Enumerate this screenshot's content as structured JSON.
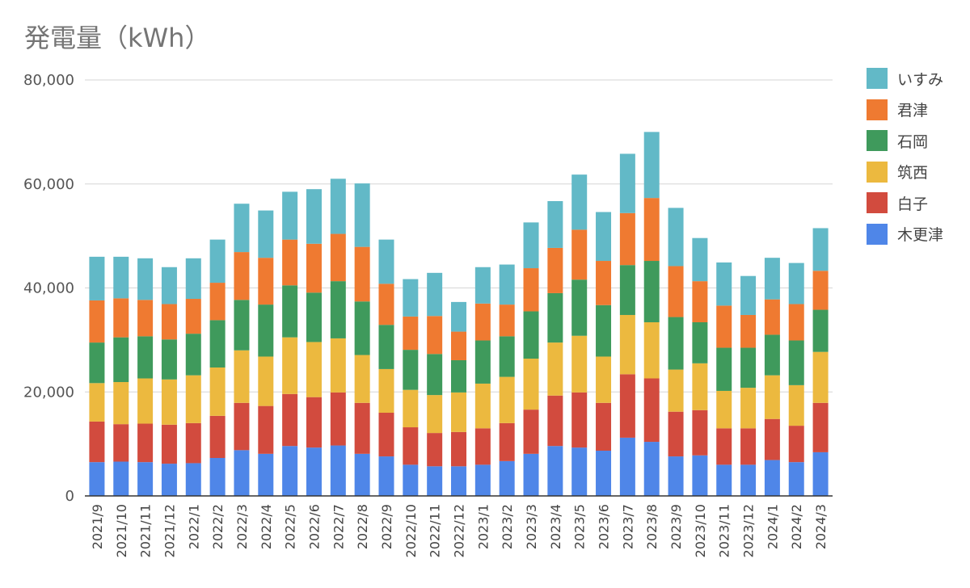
{
  "chart_data": {
    "type": "bar",
    "stacked": true,
    "title": "発電量（kWh）",
    "xlabel": "",
    "ylabel": "",
    "ylim": [
      0,
      80000
    ],
    "yticks": [
      "0",
      "20,000",
      "40,000",
      "60,000",
      "80,000"
    ],
    "grid": true,
    "legend_position": "right",
    "categories": [
      "2021/9",
      "2021/10",
      "2021/11",
      "2021/12",
      "2022/1",
      "2022/2",
      "2022/3",
      "2022/4",
      "2022/5",
      "2022/6",
      "2022/7",
      "2022/8",
      "2022/9",
      "2022/10",
      "2022/11",
      "2022/12",
      "2023/1",
      "2023/2",
      "2023/3",
      "2023/4",
      "2023/5",
      "2023/6",
      "2023/7",
      "2023/8",
      "2023/9",
      "2023/10",
      "2023/11",
      "2023/12",
      "2024/1",
      "2024/2",
      "2024/3"
    ],
    "series": [
      {
        "name": "木更津",
        "color": "#4f86e8",
        "values": [
          6500,
          6600,
          6500,
          6200,
          6300,
          7300,
          8800,
          8100,
          9600,
          9300,
          9700,
          8100,
          7600,
          6000,
          5700,
          5700,
          6000,
          6700,
          8100,
          9600,
          9300,
          8700,
          11200,
          10400,
          7600,
          7800,
          6000,
          6000,
          6900,
          6500,
          8400
        ]
      },
      {
        "name": "白子",
        "color": "#d24b3e",
        "values": [
          7800,
          7200,
          7400,
          7500,
          7700,
          8100,
          9100,
          9200,
          10000,
          9700,
          10200,
          9800,
          8400,
          7200,
          6400,
          6600,
          7000,
          7300,
          8500,
          9700,
          10600,
          9200,
          12200,
          12200,
          8600,
          8700,
          7000,
          7000,
          7900,
          7000,
          9500
        ]
      },
      {
        "name": "筑西",
        "color": "#ecb93f",
        "values": [
          7400,
          8100,
          8700,
          8700,
          9200,
          9300,
          10100,
          9500,
          10900,
          10600,
          10400,
          9200,
          8400,
          7200,
          7300,
          7600,
          8600,
          8900,
          9800,
          10200,
          10900,
          8900,
          11400,
          10800,
          8100,
          9000,
          7200,
          7800,
          8400,
          7800,
          9800
        ]
      },
      {
        "name": "石岡",
        "color": "#3f9a5c",
        "values": [
          7800,
          8600,
          8100,
          7700,
          8000,
          9100,
          9700,
          10000,
          10000,
          9500,
          11000,
          10300,
          8500,
          7700,
          7900,
          6200,
          8300,
          7800,
          9100,
          9500,
          10800,
          9900,
          9600,
          11800,
          10100,
          7900,
          8300,
          7700,
          7800,
          8600,
          8100
        ]
      },
      {
        "name": "君津",
        "color": "#ef7a31",
        "values": [
          8100,
          7500,
          7000,
          6800,
          6700,
          7200,
          9200,
          9000,
          8800,
          9400,
          9100,
          10500,
          7900,
          6400,
          7300,
          5500,
          7100,
          6100,
          8300,
          8700,
          9600,
          8500,
          10000,
          12100,
          9800,
          7900,
          8100,
          6300,
          6800,
          7000,
          7500
        ]
      },
      {
        "name": "いすみ",
        "color": "#62b9c7",
        "values": [
          8400,
          8000,
          8000,
          7100,
          7800,
          8300,
          9300,
          9100,
          9200,
          10500,
          10600,
          12200,
          8500,
          7200,
          8300,
          5700,
          7000,
          7700,
          8800,
          9000,
          10600,
          9400,
          11400,
          12700,
          11200,
          8300,
          8300,
          7500,
          8000,
          7900,
          8200
        ]
      }
    ]
  }
}
